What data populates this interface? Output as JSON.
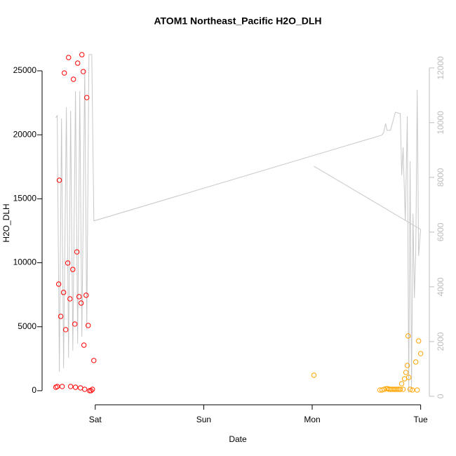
{
  "chart_data": {
    "type": "scatter",
    "title": "ATOM1 Northeast_Pacific H2O_DLH",
    "xlabel": "Date",
    "ylabel": "H2O_DLH",
    "xlim": [
      0.51,
      4.08
    ],
    "xticks": [
      {
        "value": 1,
        "label": "Sat"
      },
      {
        "value": 2,
        "label": "Sun"
      },
      {
        "value": 3,
        "label": "Mon"
      },
      {
        "value": 4,
        "label": "Tue"
      }
    ],
    "ylim": [
      -1100,
      27300
    ],
    "yticks": [
      0,
      5000,
      10000,
      15000,
      20000,
      25000
    ],
    "y2lim": [
      -310,
      12970
    ],
    "y2ticks": [
      0,
      2000,
      4000,
      6000,
      8000,
      10000,
      12000
    ],
    "y2color": "#bdbdbd",
    "series": [
      {
        "type": "line",
        "axis": "y2",
        "color": "#c8c8c8",
        "x": [
          0.637,
          0.65,
          0.669,
          0.689,
          0.708,
          0.734,
          0.754,
          0.773,
          0.793,
          0.818,
          0.838,
          0.857,
          0.877,
          0.903,
          0.922,
          0.942,
          0.968,
          0.987,
          3.638,
          3.657,
          3.677,
          3.69,
          3.722,
          3.767,
          3.812,
          3.825,
          3.838,
          3.858,
          3.877,
          3.89,
          3.903,
          3.916,
          3.929,
          3.942,
          3.955,
          3.968,
          3.981,
          4.0,
          null,
          3.016,
          4.0
        ],
        "values": [
          10180,
          10260,
          900,
          10150,
          1030,
          10560,
          1410,
          10430,
          1670,
          11150,
          1920,
          11150,
          2180,
          11920,
          2440,
          12490,
          12490,
          6410,
          9540,
          9620,
          9970,
          9720,
          9720,
          10380,
          10330,
          8080,
          9100,
          6410,
          10230,
          130,
          8590,
          260,
          6670,
          3590,
          5380,
          11200,
          5130,
          6100,
          null,
          8410,
          6100
        ]
      },
      {
        "color": "#ff0000",
        "x": [
          0.637,
          0.65,
          0.663,
          0.669,
          0.682,
          0.695,
          0.708,
          0.715,
          0.728,
          0.747,
          0.754,
          0.767,
          0.773,
          0.793,
          0.799,
          0.812,
          0.818,
          0.831,
          0.838,
          0.851,
          0.864,
          0.87,
          0.877,
          0.89,
          0.896,
          0.903,
          0.916,
          0.922,
          0.935,
          0.948,
          0.961,
          0.974,
          0.987
        ],
        "values": [
          270,
          330,
          8330,
          16450,
          5810,
          330,
          7680,
          24830,
          4770,
          9980,
          26040,
          7180,
          330,
          9480,
          24340,
          5210,
          270,
          10850,
          25600,
          7350,
          220,
          6850,
          26260,
          24940,
          3560,
          110,
          7460,
          22910,
          5100,
          0,
          0,
          110,
          2360
        ]
      },
      {
        "color": "#ffa500",
        "x": [
          3.016,
          3.625,
          3.644,
          3.664,
          3.683,
          3.696,
          3.709,
          3.722,
          3.735,
          3.748,
          3.761,
          3.774,
          3.787,
          3.8,
          3.812,
          3.825,
          3.838,
          3.851,
          3.864,
          3.877,
          3.884,
          3.89,
          3.903,
          3.923,
          3.955,
          3.968,
          3.981,
          4.0
        ],
        "values": [
          1210,
          55,
          55,
          110,
          160,
          160,
          110,
          110,
          110,
          110,
          110,
          110,
          110,
          110,
          110,
          550,
          110,
          930,
          1430,
          1970,
          4280,
          1040,
          110,
          55,
          2250,
          55,
          3890,
          2900
        ]
      }
    ]
  }
}
